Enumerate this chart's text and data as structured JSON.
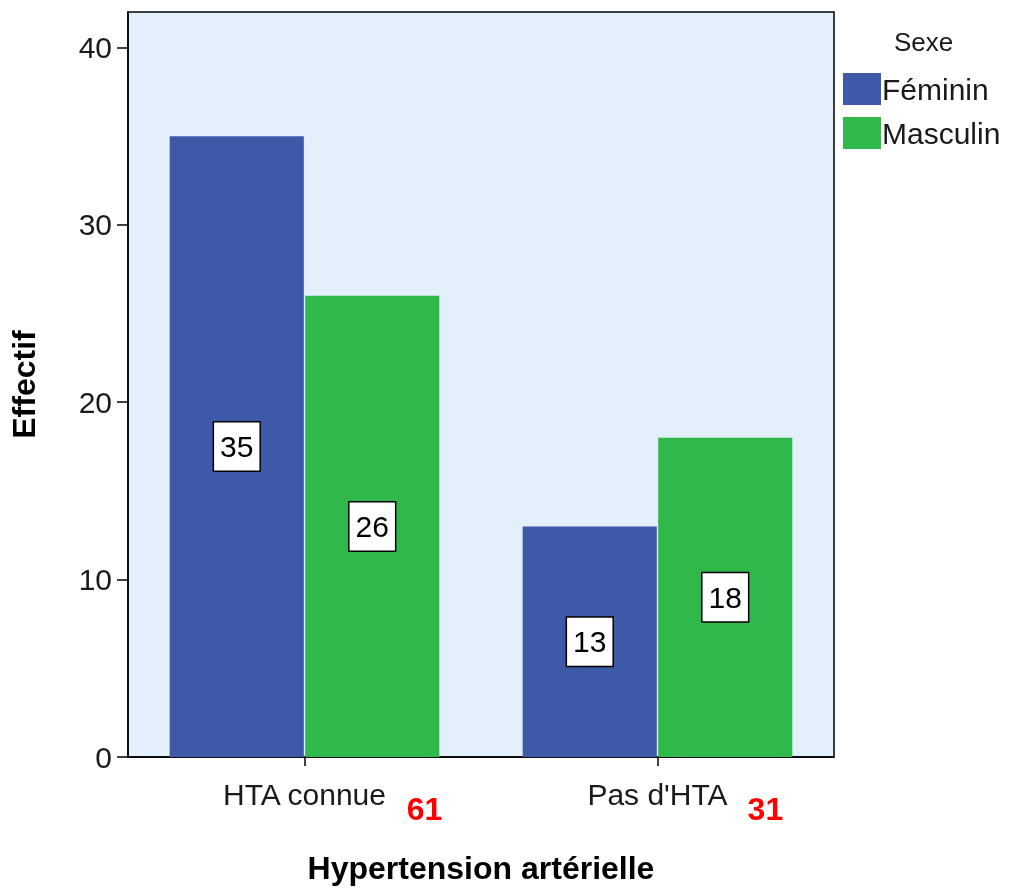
{
  "chart_data": {
    "type": "bar",
    "categories": [
      "HTA connue",
      "Pas d'HTA"
    ],
    "series": [
      {
        "name": "Féminin",
        "color": "#3f59a9",
        "values": [
          35,
          13
        ]
      },
      {
        "name": "Masculin",
        "color": "#30b84a",
        "values": [
          26,
          18
        ]
      }
    ],
    "totals": [
      "61",
      "31"
    ],
    "xlabel": "Hypertension artérielle",
    "ylabel": "Effectif",
    "legend_title": "Sexe",
    "ylim": [
      0,
      42
    ],
    "yticks": [
      0,
      10,
      20,
      30,
      40
    ],
    "data_labels": true,
    "legend": "right",
    "grid": false
  }
}
